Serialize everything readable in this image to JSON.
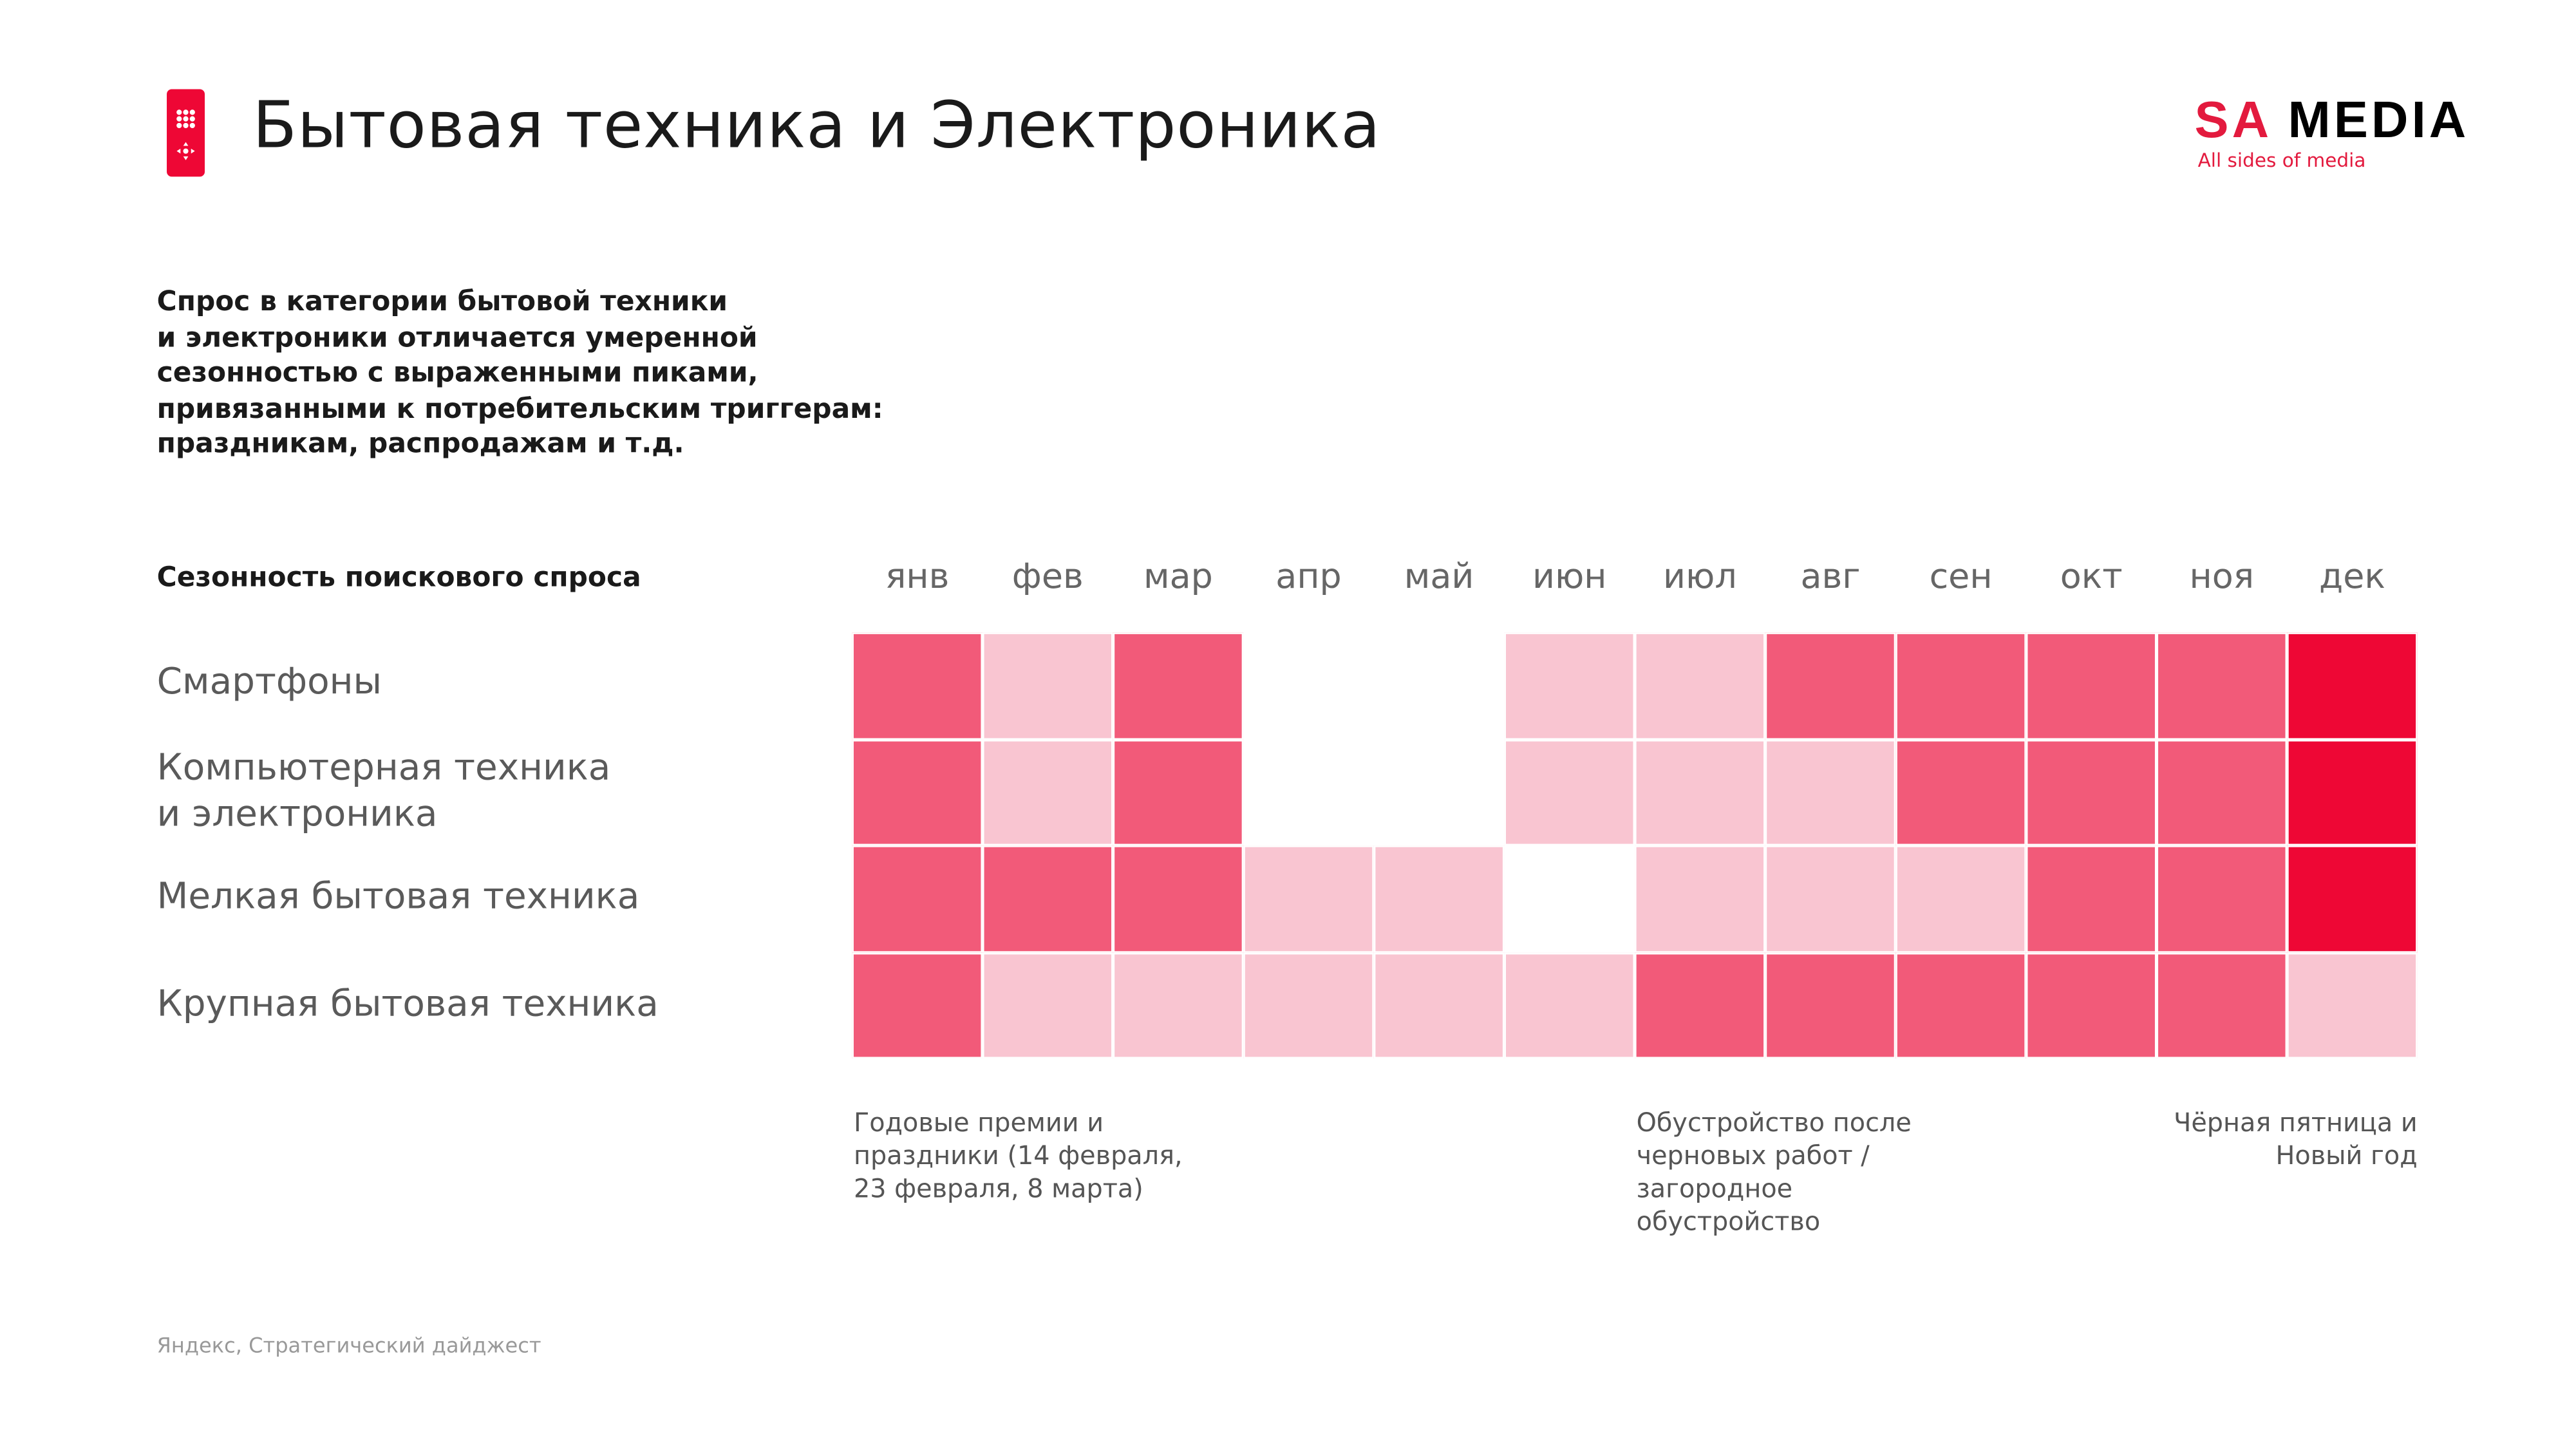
{
  "header": {
    "title": "Бытовая техника и Электроника",
    "icon": "remote-control-icon",
    "logo": {
      "part1": "SA",
      "part2": "MEDIA",
      "tagline": "All sides of media"
    }
  },
  "intro_lines": [
    "Спрос в категории бытовой техники",
    "и электроники отличается умеренной",
    "сезонностью с выраженными пиками,",
    "привязанными к потребительским триггерам:",
    "праздникам, распродажам и т.д."
  ],
  "colors": {
    "level0": "#FFFFFF",
    "level1": "#F9C5D1",
    "level2": "#F25A79",
    "level3": "#EE0735",
    "accent": "#EE0735"
  },
  "chart_data": {
    "type": "heatmap",
    "title": "Сезонность поискового спроса",
    "x": [
      "янв",
      "фев",
      "мар",
      "апр",
      "май",
      "июн",
      "июл",
      "авг",
      "сен",
      "окт",
      "ноя",
      "дек"
    ],
    "y": [
      [
        "Смартфоны"
      ],
      [
        "Компьютерная техника",
        "и электроника"
      ],
      [
        "Мелкая бытовая техника"
      ],
      [
        "Крупная бытовая техника"
      ]
    ],
    "scale": "0 = нет/низкий, 1 = слабый, 2 = высокий, 3 = пиковый",
    "values": [
      [
        2,
        1,
        2,
        0,
        0,
        1,
        1,
        2,
        2,
        2,
        2,
        3
      ],
      [
        2,
        1,
        2,
        0,
        0,
        1,
        1,
        1,
        2,
        2,
        2,
        3
      ],
      [
        2,
        2,
        2,
        1,
        1,
        0,
        1,
        1,
        1,
        2,
        2,
        3
      ],
      [
        2,
        1,
        1,
        1,
        1,
        1,
        2,
        2,
        2,
        2,
        2,
        1
      ]
    ],
    "annotations": [
      {
        "month": "янв",
        "lines": [
          "Годовые премии и",
          "праздники (14 февраля,",
          "23 февраля, 8 марта)"
        ]
      },
      {
        "month": "июл",
        "lines": [
          "Обустройство после",
          "черновых работ /",
          "загородное",
          "обустройство"
        ]
      },
      {
        "month": "дек",
        "lines": [
          "Чёрная пятница и",
          "Новый год"
        ]
      }
    ]
  },
  "footer": {
    "source": "Яндекс, Стратегический дайджест"
  }
}
